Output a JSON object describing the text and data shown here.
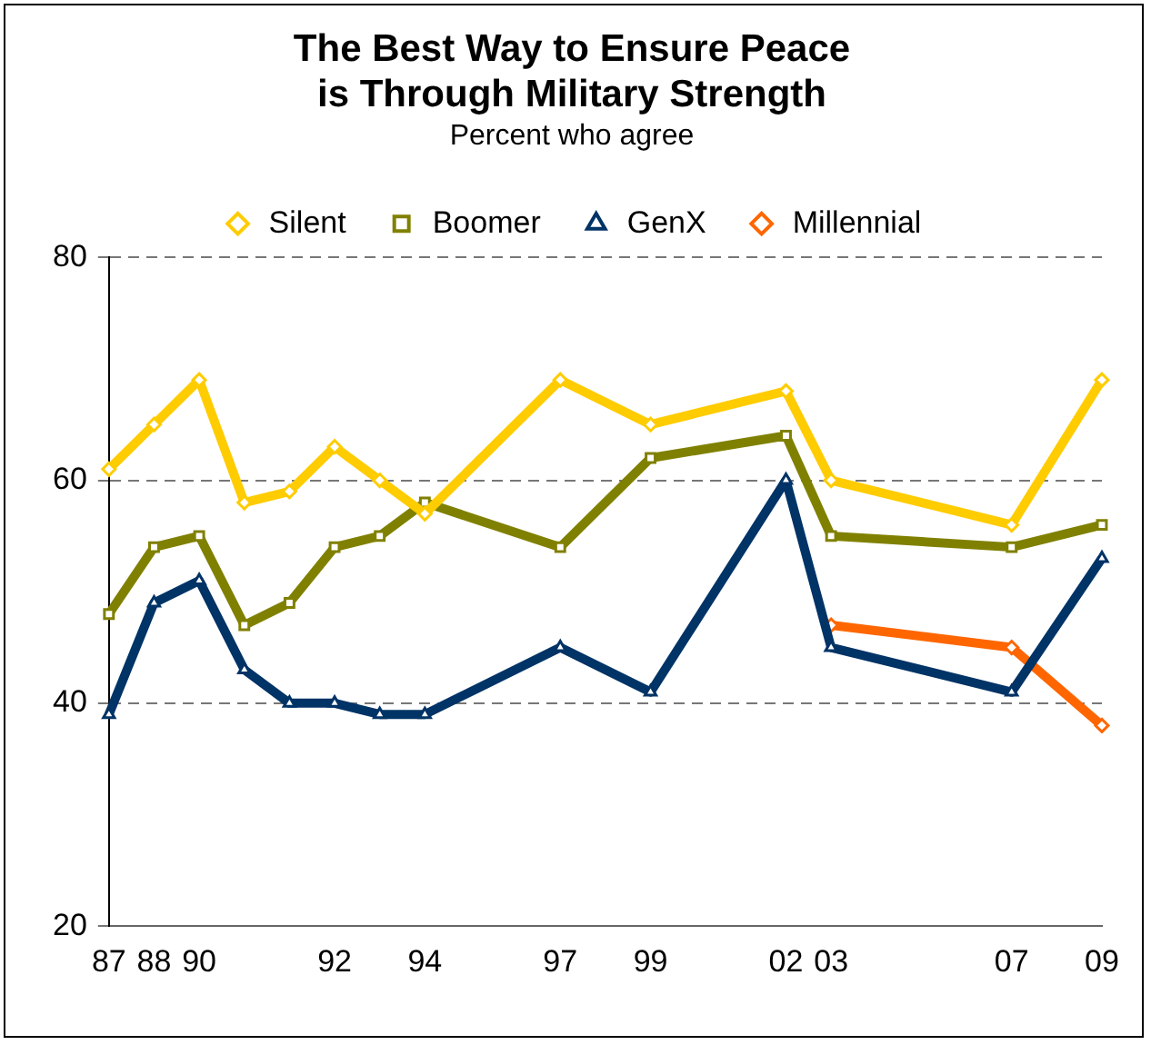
{
  "chart_data": {
    "type": "line",
    "title": "The Best Way to Ensure Peace\nis Through Military Strength",
    "subtitle": "Percent who agree",
    "categories": [
      "87",
      "88",
      "90",
      null,
      null,
      "92",
      null,
      "94",
      null,
      null,
      "97",
      null,
      "99",
      null,
      null,
      "02",
      "03",
      null,
      null,
      null,
      "07",
      null,
      "09"
    ],
    "series": [
      {
        "name": "Silent",
        "color": "#ffcc00",
        "marker": "diamond",
        "values": [
          61,
          65,
          69,
          58,
          59,
          63,
          60,
          57,
          null,
          null,
          69,
          null,
          65,
          null,
          null,
          68,
          60,
          null,
          null,
          null,
          56,
          null,
          69
        ]
      },
      {
        "name": "Boomer",
        "color": "#808000",
        "marker": "square",
        "values": [
          48,
          54,
          55,
          47,
          49,
          54,
          55,
          58,
          null,
          null,
          54,
          null,
          62,
          null,
          null,
          64,
          55,
          null,
          null,
          null,
          54,
          null,
          56
        ]
      },
      {
        "name": "GenX",
        "color": "#003366",
        "marker": "triangle",
        "values": [
          39,
          49,
          51,
          43,
          40,
          40,
          39,
          39,
          null,
          null,
          45,
          null,
          41,
          null,
          null,
          60,
          45,
          null,
          null,
          null,
          41,
          null,
          53
        ]
      },
      {
        "name": "Millennial",
        "color": "#ff6600",
        "marker": "diamond",
        "values": [
          null,
          null,
          null,
          null,
          null,
          null,
          null,
          null,
          null,
          null,
          null,
          null,
          null,
          null,
          null,
          null,
          47,
          null,
          null,
          null,
          45,
          null,
          38
        ]
      }
    ],
    "ylim": [
      20,
      80
    ],
    "yticks": [
      20,
      40,
      60,
      80
    ],
    "grid": "y",
    "legend": "top",
    "line_style": "solid"
  }
}
